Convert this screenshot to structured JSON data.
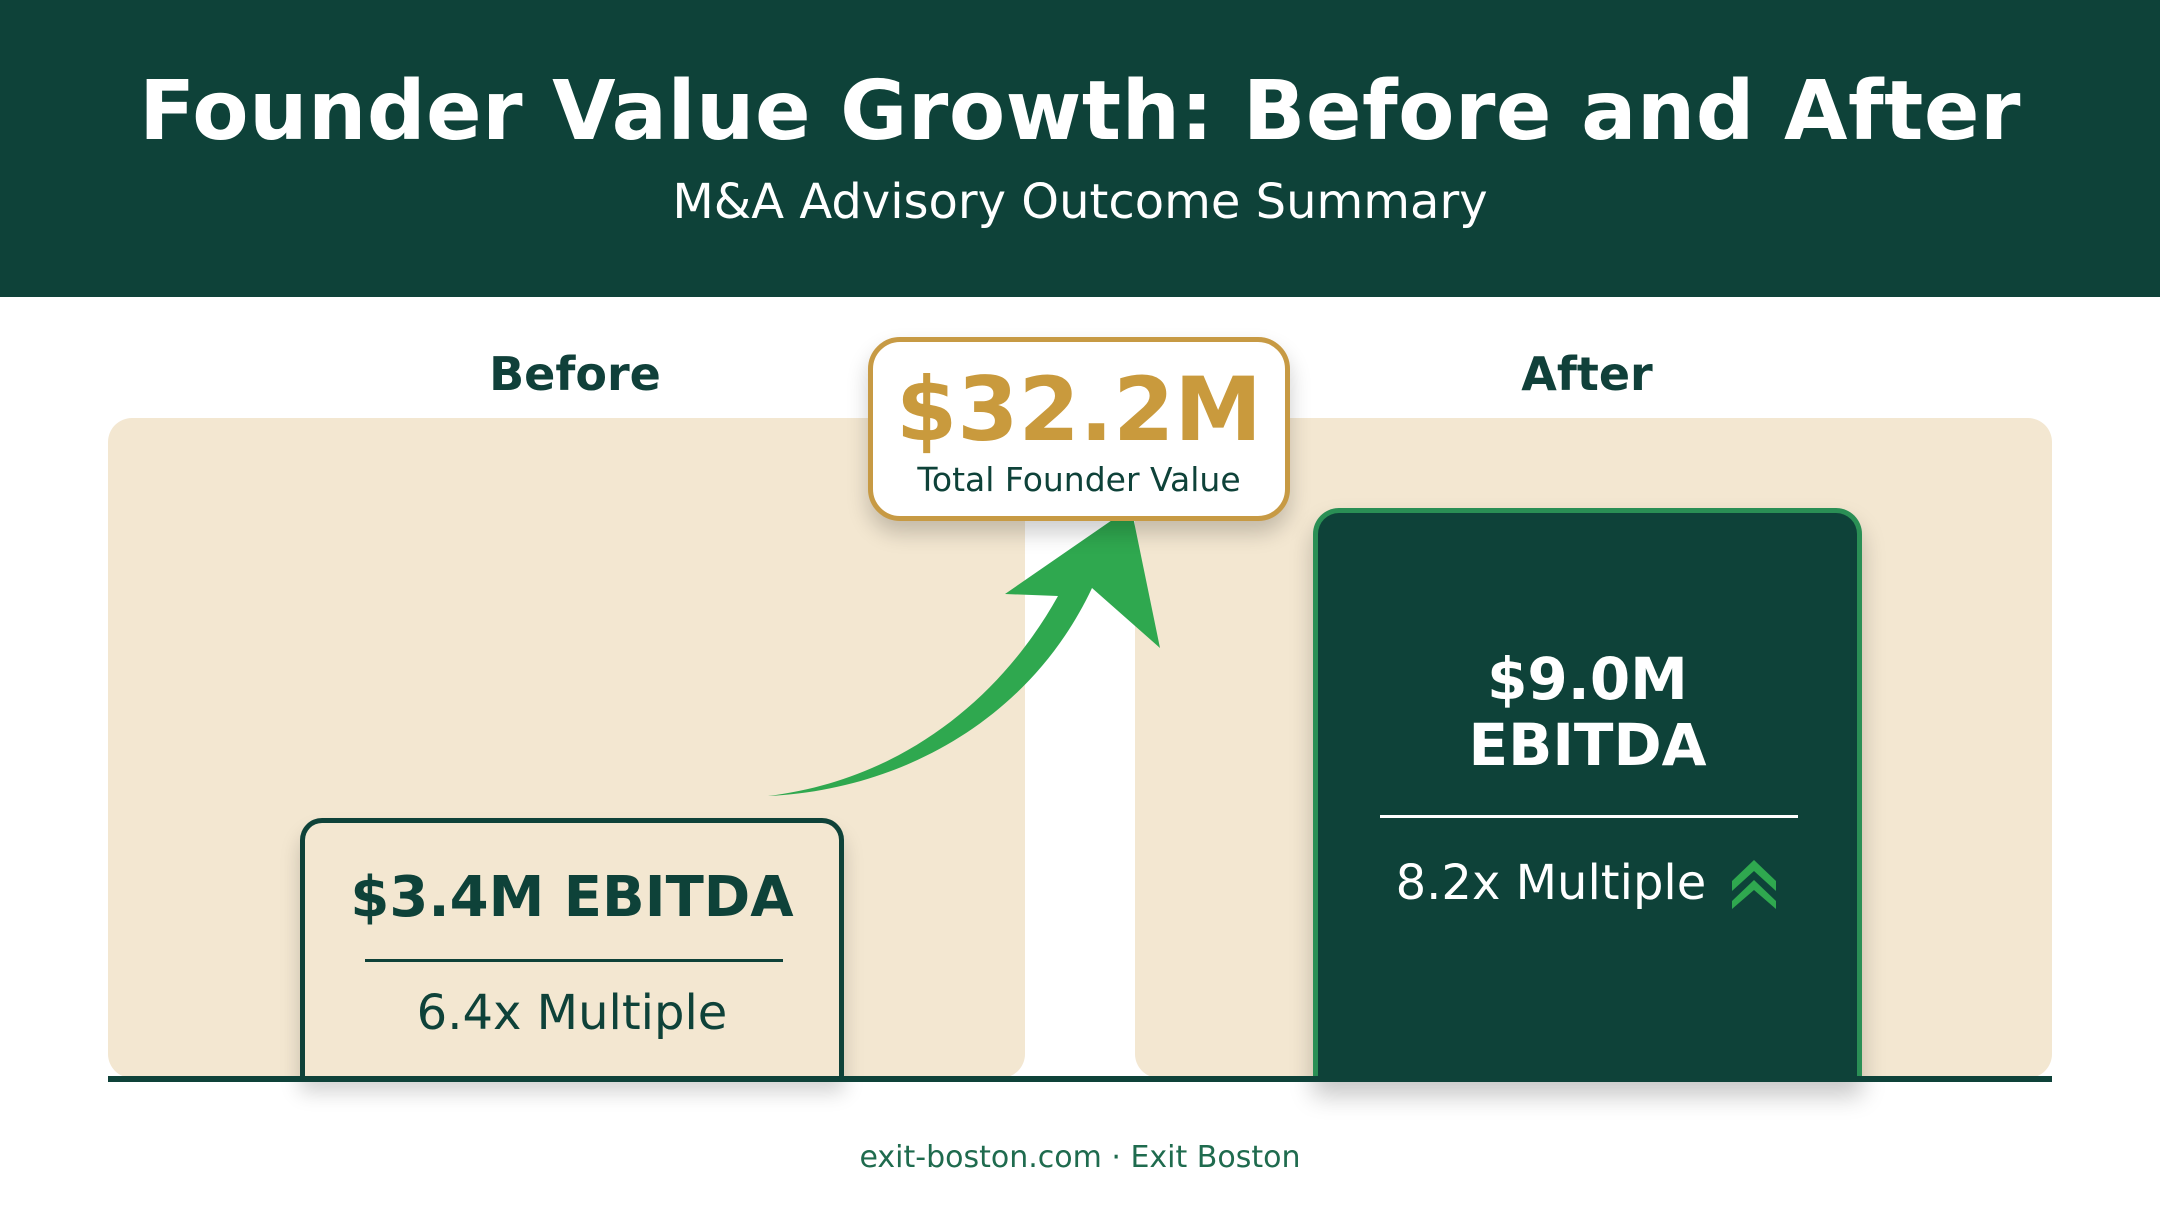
{
  "title": "Founder Value Growth: Before and After",
  "subtitle": "M&A Advisory Outcome Summary",
  "footer": "exit-boston.com · Exit Boston",
  "colors": {
    "header": "#0e4239",
    "panel": "#f3e7d1",
    "accent_gold": "#c99a3d",
    "accent_green": "#2fa84f"
  },
  "chart_data": {
    "type": "table",
    "title": "Founder Value Growth: Before and After",
    "subtitle": "M&A Advisory Outcome Summary",
    "columns": [
      "Before",
      "After"
    ],
    "before": {
      "label": "Before",
      "ebitda_text": "$3.4M EBITDA",
      "ebitda_musd": 3.4,
      "multiple_text": "6.4x Multiple",
      "multiple": 6.4
    },
    "after": {
      "label": "After",
      "ebitda_value_text": "$9.0M",
      "ebitda_label": "EBITDA",
      "ebitda_musd": 9.0,
      "multiple_text": "8.2x Multiple",
      "multiple": 8.2
    },
    "callout": {
      "value_text": "$32.2M",
      "value_musd": 32.2,
      "label": "Total Founder Value"
    }
  }
}
